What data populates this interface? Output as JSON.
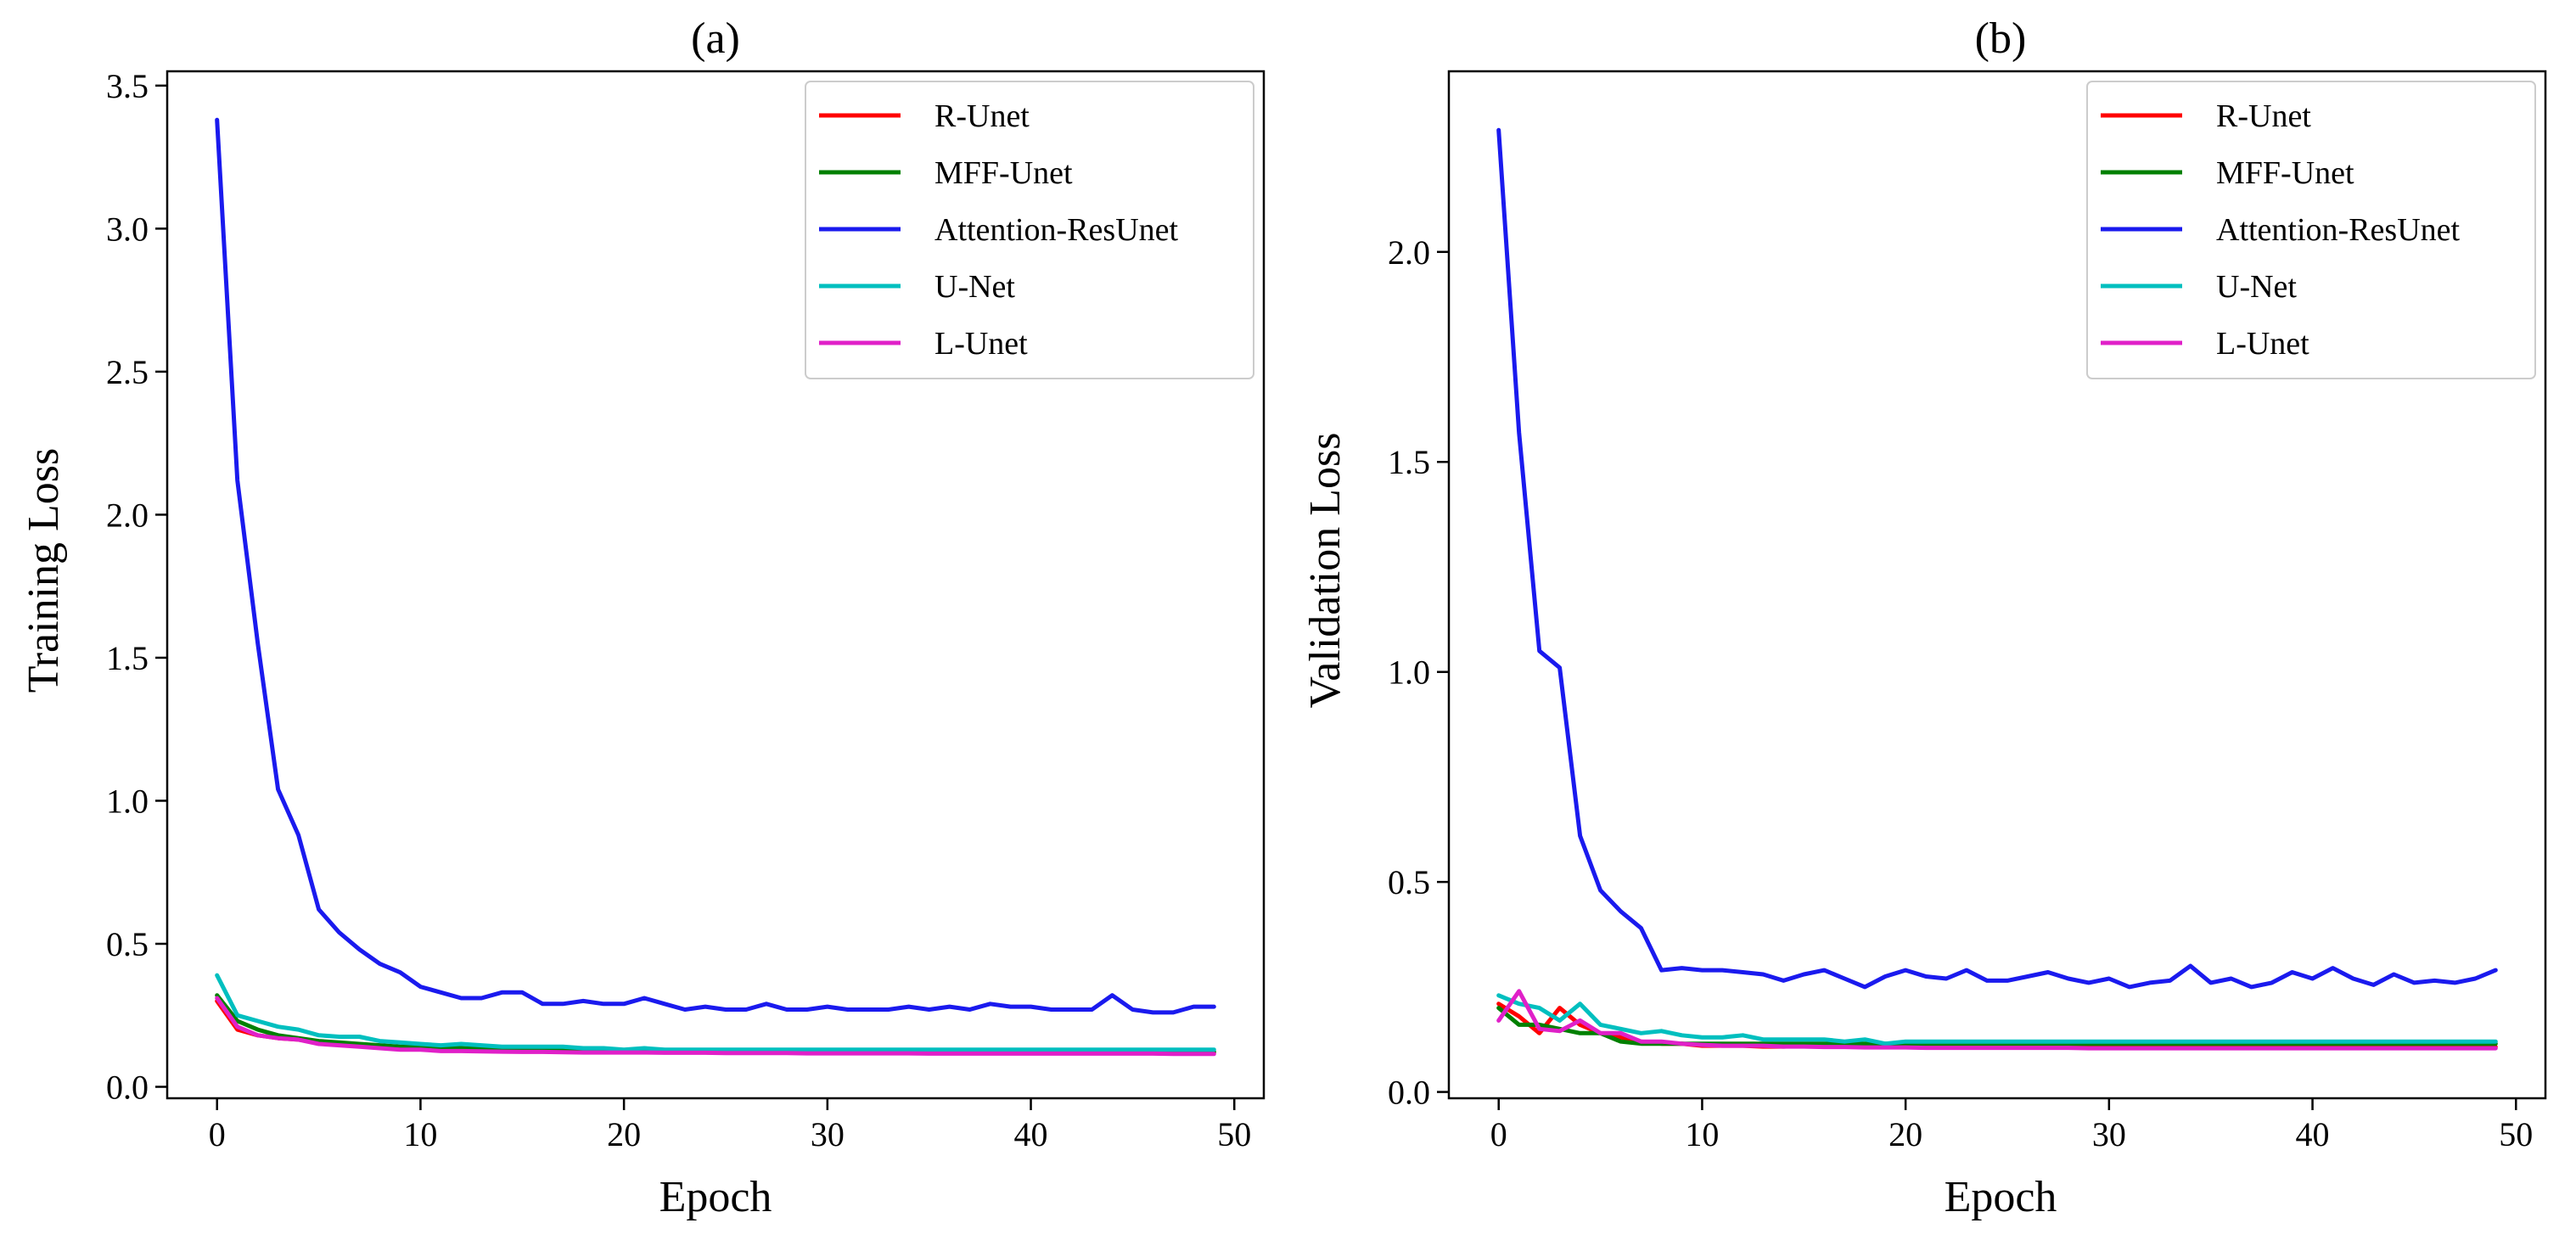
{
  "chart_data": [
    {
      "type": "line",
      "title": "(a)",
      "xlabel": "Epoch",
      "ylabel": "Training Loss",
      "xlim": [
        -2.45,
        51.45
      ],
      "ylim": [
        -0.04,
        3.55
      ],
      "xticks": [
        0,
        10,
        20,
        30,
        40,
        50
      ],
      "xtick_labels": [
        "0",
        "10",
        "20",
        "30",
        "40",
        "50"
      ],
      "yticks": [
        0.0,
        0.5,
        1.0,
        1.5,
        2.0,
        2.5,
        3.0,
        3.5
      ],
      "ytick_labels": [
        "0.0",
        "0.5",
        "1.0",
        "1.5",
        "2.0",
        "2.5",
        "3.0",
        "3.5"
      ],
      "grid": false,
      "legend_position": "top-right",
      "series": [
        {
          "name": "R-Unet",
          "color": "#ff0000",
          "values": [
            0.3,
            0.2,
            0.18,
            0.17,
            0.165,
            0.155,
            0.15,
            0.145,
            0.14,
            0.138,
            0.135,
            0.13,
            0.13,
            0.13,
            0.128,
            0.127,
            0.126,
            0.126,
            0.125,
            0.125,
            0.124,
            0.124,
            0.123,
            0.123,
            0.123,
            0.122,
            0.122,
            0.122,
            0.122,
            0.121,
            0.121,
            0.121,
            0.121,
            0.121,
            0.121,
            0.12,
            0.12,
            0.12,
            0.12,
            0.12,
            0.12,
            0.12,
            0.12,
            0.12,
            0.12,
            0.12,
            0.12,
            0.12,
            0.12,
            0.12
          ]
        },
        {
          "name": "MFF-Unet",
          "color": "#008000",
          "values": [
            0.32,
            0.23,
            0.2,
            0.18,
            0.17,
            0.16,
            0.155,
            0.15,
            0.145,
            0.14,
            0.14,
            0.135,
            0.135,
            0.133,
            0.132,
            0.13,
            0.13,
            0.13,
            0.128,
            0.128,
            0.127,
            0.127,
            0.126,
            0.126,
            0.126,
            0.125,
            0.125,
            0.125,
            0.125,
            0.125,
            0.124,
            0.124,
            0.124,
            0.124,
            0.124,
            0.124,
            0.124,
            0.123,
            0.123,
            0.123,
            0.123,
            0.123,
            0.123,
            0.123,
            0.123,
            0.123,
            0.123,
            0.123,
            0.123,
            0.123
          ]
        },
        {
          "name": "Attention-ResUnet",
          "color": "#1a1aee",
          "values": [
            3.38,
            2.12,
            1.55,
            1.04,
            0.88,
            0.62,
            0.54,
            0.48,
            0.43,
            0.4,
            0.35,
            0.33,
            0.31,
            0.31,
            0.33,
            0.33,
            0.29,
            0.29,
            0.3,
            0.29,
            0.29,
            0.31,
            0.29,
            0.27,
            0.28,
            0.27,
            0.27,
            0.29,
            0.27,
            0.27,
            0.28,
            0.27,
            0.27,
            0.27,
            0.28,
            0.27,
            0.28,
            0.27,
            0.29,
            0.28,
            0.28,
            0.27,
            0.27,
            0.27,
            0.32,
            0.27,
            0.26,
            0.26,
            0.28,
            0.28
          ]
        },
        {
          "name": "U-Net",
          "color": "#00bfbf",
          "values": [
            0.39,
            0.25,
            0.23,
            0.21,
            0.2,
            0.18,
            0.175,
            0.175,
            0.16,
            0.155,
            0.15,
            0.145,
            0.15,
            0.145,
            0.14,
            0.14,
            0.14,
            0.14,
            0.135,
            0.135,
            0.13,
            0.135,
            0.13,
            0.13,
            0.13,
            0.13,
            0.13,
            0.13,
            0.13,
            0.13,
            0.13,
            0.13,
            0.13,
            0.13,
            0.13,
            0.13,
            0.13,
            0.13,
            0.13,
            0.13,
            0.13,
            0.13,
            0.13,
            0.13,
            0.13,
            0.13,
            0.13,
            0.13,
            0.13,
            0.13
          ]
        },
        {
          "name": "L-Unet",
          "color": "#e020c8",
          "values": [
            0.31,
            0.21,
            0.18,
            0.17,
            0.165,
            0.15,
            0.145,
            0.14,
            0.135,
            0.13,
            0.13,
            0.125,
            0.125,
            0.124,
            0.123,
            0.122,
            0.122,
            0.121,
            0.12,
            0.12,
            0.12,
            0.12,
            0.119,
            0.119,
            0.119,
            0.118,
            0.118,
            0.118,
            0.118,
            0.117,
            0.117,
            0.117,
            0.117,
            0.117,
            0.117,
            0.116,
            0.116,
            0.116,
            0.116,
            0.116,
            0.116,
            0.116,
            0.116,
            0.116,
            0.116,
            0.116,
            0.116,
            0.115,
            0.115,
            0.115
          ]
        }
      ]
    },
    {
      "type": "line",
      "title": "(b)",
      "xlabel": "Epoch",
      "ylabel": "Validation Loss",
      "xlim": [
        -2.45,
        51.45
      ],
      "ylim": [
        -0.015,
        2.43
      ],
      "xticks": [
        0,
        10,
        20,
        30,
        40,
        50
      ],
      "xtick_labels": [
        "0",
        "10",
        "20",
        "30",
        "40",
        "50"
      ],
      "yticks": [
        0.0,
        0.5,
        1.0,
        1.5,
        2.0
      ],
      "ytick_labels": [
        "0.0",
        "0.5",
        "1.0",
        "1.5",
        "2.0"
      ],
      "grid": false,
      "legend_position": "top-right",
      "series": [
        {
          "name": "R-Unet",
          "color": "#ff0000",
          "values": [
            0.21,
            0.18,
            0.14,
            0.2,
            0.16,
            0.14,
            0.13,
            0.12,
            0.115,
            0.115,
            0.11,
            0.11,
            0.11,
            0.108,
            0.108,
            0.11,
            0.11,
            0.108,
            0.107,
            0.108,
            0.108,
            0.108,
            0.107,
            0.107,
            0.107,
            0.107,
            0.107,
            0.107,
            0.107,
            0.107,
            0.107,
            0.107,
            0.107,
            0.107,
            0.107,
            0.107,
            0.107,
            0.107,
            0.107,
            0.107,
            0.107,
            0.107,
            0.107,
            0.107,
            0.107,
            0.107,
            0.107,
            0.107,
            0.107,
            0.107
          ]
        },
        {
          "name": "MFF-Unet",
          "color": "#008000",
          "values": [
            0.2,
            0.16,
            0.16,
            0.15,
            0.14,
            0.14,
            0.12,
            0.115,
            0.115,
            0.115,
            0.115,
            0.115,
            0.115,
            0.115,
            0.115,
            0.115,
            0.115,
            0.115,
            0.115,
            0.115,
            0.115,
            0.115,
            0.115,
            0.115,
            0.115,
            0.115,
            0.115,
            0.115,
            0.115,
            0.115,
            0.115,
            0.115,
            0.115,
            0.115,
            0.115,
            0.115,
            0.115,
            0.115,
            0.115,
            0.115,
            0.115,
            0.115,
            0.115,
            0.115,
            0.115,
            0.115,
            0.115,
            0.115,
            0.115,
            0.115
          ]
        },
        {
          "name": "Attention-ResUnet",
          "color": "#1a1aee",
          "values": [
            2.29,
            1.57,
            1.05,
            1.01,
            0.61,
            0.48,
            0.43,
            0.39,
            0.29,
            0.295,
            0.29,
            0.29,
            0.285,
            0.28,
            0.265,
            0.28,
            0.29,
            0.27,
            0.25,
            0.275,
            0.29,
            0.275,
            0.27,
            0.29,
            0.265,
            0.265,
            0.275,
            0.285,
            0.27,
            0.26,
            0.27,
            0.25,
            0.26,
            0.265,
            0.3,
            0.26,
            0.27,
            0.25,
            0.26,
            0.285,
            0.27,
            0.295,
            0.27,
            0.255,
            0.28,
            0.26,
            0.265,
            0.26,
            0.27,
            0.29
          ]
        },
        {
          "name": "U-Net",
          "color": "#00bfbf",
          "values": [
            0.23,
            0.21,
            0.2,
            0.17,
            0.21,
            0.16,
            0.15,
            0.14,
            0.145,
            0.135,
            0.13,
            0.13,
            0.135,
            0.125,
            0.125,
            0.125,
            0.125,
            0.12,
            0.125,
            0.115,
            0.12,
            0.12,
            0.12,
            0.12,
            0.12,
            0.12,
            0.12,
            0.12,
            0.12,
            0.12,
            0.12,
            0.12,
            0.12,
            0.12,
            0.12,
            0.12,
            0.12,
            0.12,
            0.12,
            0.12,
            0.12,
            0.12,
            0.12,
            0.12,
            0.12,
            0.12,
            0.12,
            0.12,
            0.12,
            0.12
          ]
        },
        {
          "name": "L-Unet",
          "color": "#e020c8",
          "values": [
            0.17,
            0.24,
            0.15,
            0.145,
            0.17,
            0.14,
            0.14,
            0.12,
            0.12,
            0.115,
            0.112,
            0.11,
            0.11,
            0.11,
            0.108,
            0.108,
            0.107,
            0.107,
            0.106,
            0.106,
            0.106,
            0.105,
            0.105,
            0.105,
            0.105,
            0.105,
            0.105,
            0.105,
            0.105,
            0.104,
            0.104,
            0.104,
            0.104,
            0.104,
            0.104,
            0.104,
            0.104,
            0.104,
            0.104,
            0.104,
            0.104,
            0.104,
            0.104,
            0.104,
            0.104,
            0.104,
            0.104,
            0.104,
            0.104,
            0.104
          ]
        }
      ]
    }
  ]
}
